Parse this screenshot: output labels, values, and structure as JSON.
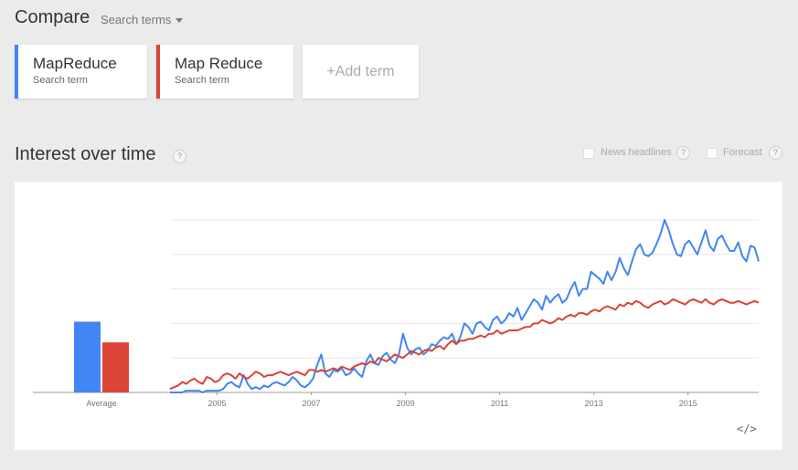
{
  "header": {
    "title": "Compare",
    "search_terms_label": "Search terms"
  },
  "terms": [
    {
      "name": "MapReduce",
      "sub": "Search term",
      "color": "#4285f4"
    },
    {
      "name": "Map Reduce",
      "sub": "Search term",
      "color": "#db4437"
    }
  ],
  "add_term": {
    "label": "+Add term"
  },
  "section": {
    "title": "Interest over time",
    "help": "?",
    "news_headlines": "News headlines",
    "forecast": "Forecast"
  },
  "embed": {
    "label": "</>"
  },
  "chart_data": {
    "type": "line",
    "average": {
      "label": "Average",
      "values": [
        41,
        29
      ]
    },
    "ylim": [
      0,
      100
    ],
    "x_start": 2004.0,
    "x_end": 2016.5,
    "x_tick_labels": [
      "2005",
      "2007",
      "2009",
      "2011",
      "2013",
      "2015"
    ],
    "x_tick_positions": [
      2005,
      2007,
      2009,
      2011,
      2013,
      2015
    ],
    "grid": true,
    "series": [
      {
        "name": "MapReduce",
        "color": "#4285f4",
        "values": [
          0,
          0,
          0,
          0,
          1,
          1,
          1,
          1,
          0,
          1,
          1,
          1,
          1,
          2,
          5,
          6,
          4,
          3,
          10,
          5,
          2,
          3,
          2,
          4,
          3,
          5,
          6,
          5,
          4,
          6,
          9,
          7,
          4,
          3,
          5,
          8,
          16,
          22,
          11,
          9,
          13,
          12,
          14,
          10,
          11,
          14,
          11,
          9,
          18,
          22,
          17,
          16,
          21,
          23,
          19,
          17,
          22,
          34,
          26,
          22,
          25,
          26,
          22,
          24,
          28,
          27,
          30,
          32,
          31,
          34,
          28,
          32,
          40,
          38,
          34,
          40,
          41,
          38,
          36,
          42,
          44,
          40,
          42,
          46,
          44,
          49,
          42,
          46,
          50,
          54,
          52,
          48,
          56,
          52,
          55,
          57,
          52,
          54,
          60,
          64,
          56,
          60,
          60,
          70,
          68,
          66,
          63,
          70,
          65,
          70,
          78,
          72,
          68,
          76,
          83,
          86,
          80,
          79,
          81,
          86,
          92,
          100,
          94,
          86,
          80,
          79,
          86,
          88,
          84,
          80,
          87,
          94,
          85,
          82,
          89,
          91,
          86,
          82,
          82,
          87,
          79,
          76,
          85,
          84,
          76
        ],
        "__x_is_month_index_from_2004_01": true
      },
      {
        "name": "Map Reduce",
        "color": "#db4437",
        "values": [
          2,
          3,
          4,
          6,
          5,
          7,
          8,
          6,
          5,
          9,
          8,
          6,
          7,
          10,
          11,
          10,
          8,
          11,
          9,
          8,
          10,
          12,
          11,
          9,
          10,
          10,
          11,
          12,
          11,
          10,
          11,
          12,
          11,
          10,
          13,
          13,
          12,
          13,
          12,
          13,
          14,
          13,
          15,
          14,
          13,
          15,
          16,
          17,
          16,
          18,
          17,
          20,
          19,
          18,
          20,
          22,
          21,
          20,
          22,
          24,
          23,
          22,
          24,
          25,
          24,
          26,
          27,
          25,
          28,
          30,
          28,
          30,
          30,
          31,
          31,
          32,
          33,
          32,
          34,
          34,
          36,
          34,
          35,
          36,
          36,
          36,
          37,
          38,
          38,
          40,
          40,
          42,
          41,
          40,
          41,
          43,
          42,
          44,
          45,
          44,
          46,
          46,
          45,
          47,
          48,
          47,
          49,
          50,
          49,
          48,
          51,
          50,
          52,
          51,
          53,
          52,
          50,
          49,
          51,
          52,
          53,
          51,
          52,
          54,
          53,
          52,
          51,
          53,
          54,
          53,
          52,
          54,
          52,
          51,
          53,
          54,
          53,
          52,
          52,
          53,
          52,
          51,
          52,
          53,
          52
        ]
      }
    ]
  }
}
